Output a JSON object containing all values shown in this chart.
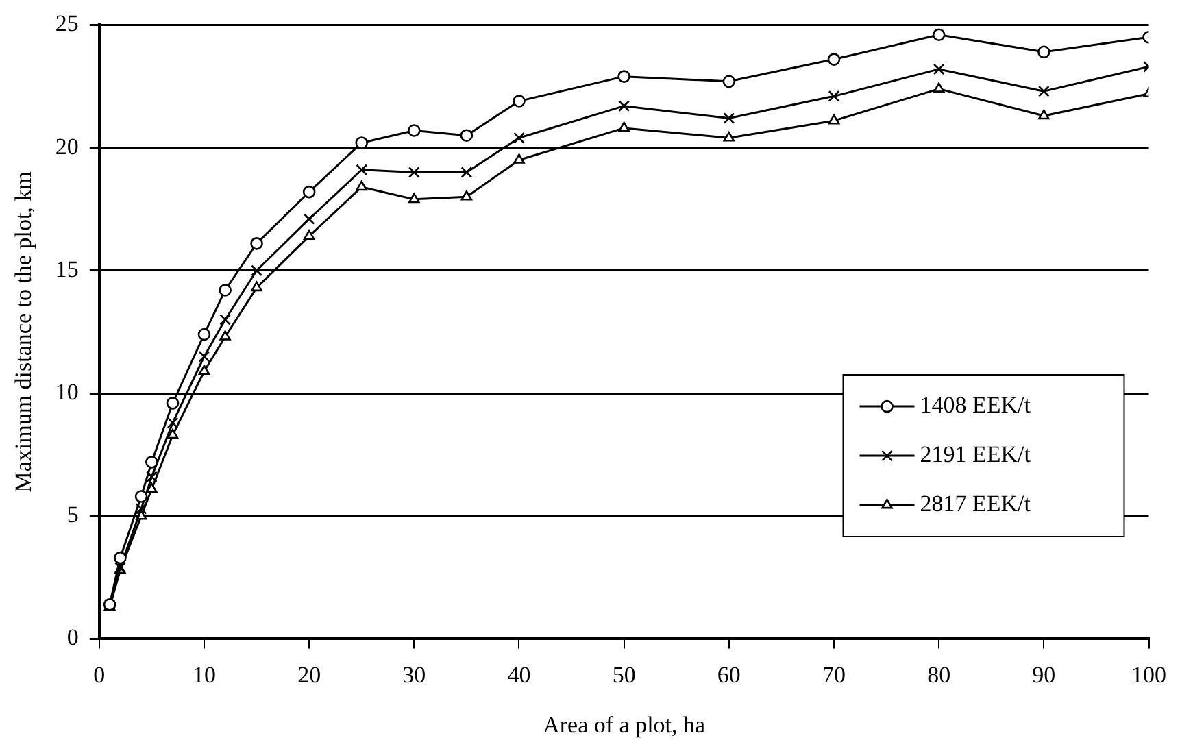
{
  "chart_data": {
    "type": "line",
    "xlabel": "Area of a plot, ha",
    "ylabel": "Maximum distance to the plot, km",
    "x": [
      1,
      2,
      4,
      5,
      7,
      10,
      12,
      15,
      20,
      25,
      30,
      35,
      40,
      50,
      60,
      70,
      80,
      90,
      100
    ],
    "xlim": [
      0,
      100
    ],
    "xticks": [
      0,
      10,
      20,
      30,
      40,
      50,
      60,
      70,
      80,
      90,
      100
    ],
    "ylim": [
      0,
      25
    ],
    "yticks": [
      0,
      5,
      10,
      15,
      20,
      25
    ],
    "grid": "y",
    "legend": "right",
    "line_style": "solid",
    "series": [
      {
        "name": "1408 EEK/t",
        "color": "#000000",
        "marker": "circle",
        "values": [
          1.4,
          3.3,
          5.8,
          7.2,
          9.6,
          12.4,
          14.2,
          16.1,
          18.2,
          20.2,
          20.7,
          20.5,
          21.9,
          22.9,
          22.7,
          23.6,
          24.6,
          23.9,
          24.5
        ]
      },
      {
        "name": "2191 EEK/t",
        "color": "#000000",
        "marker": "cross",
        "values": [
          1.4,
          2.9,
          5.3,
          6.6,
          8.8,
          11.5,
          13.0,
          15.0,
          17.1,
          19.1,
          19.0,
          19.0,
          20.4,
          21.7,
          21.2,
          22.1,
          23.2,
          22.3,
          23.3
        ]
      },
      {
        "name": "2817 EEK/t",
        "color": "#000000",
        "marker": "triangle",
        "values": [
          1.3,
          2.8,
          5.0,
          6.1,
          8.3,
          10.9,
          12.3,
          14.3,
          16.4,
          18.4,
          17.9,
          18.0,
          19.5,
          20.8,
          20.4,
          21.1,
          22.4,
          21.3,
          22.2
        ]
      }
    ]
  }
}
